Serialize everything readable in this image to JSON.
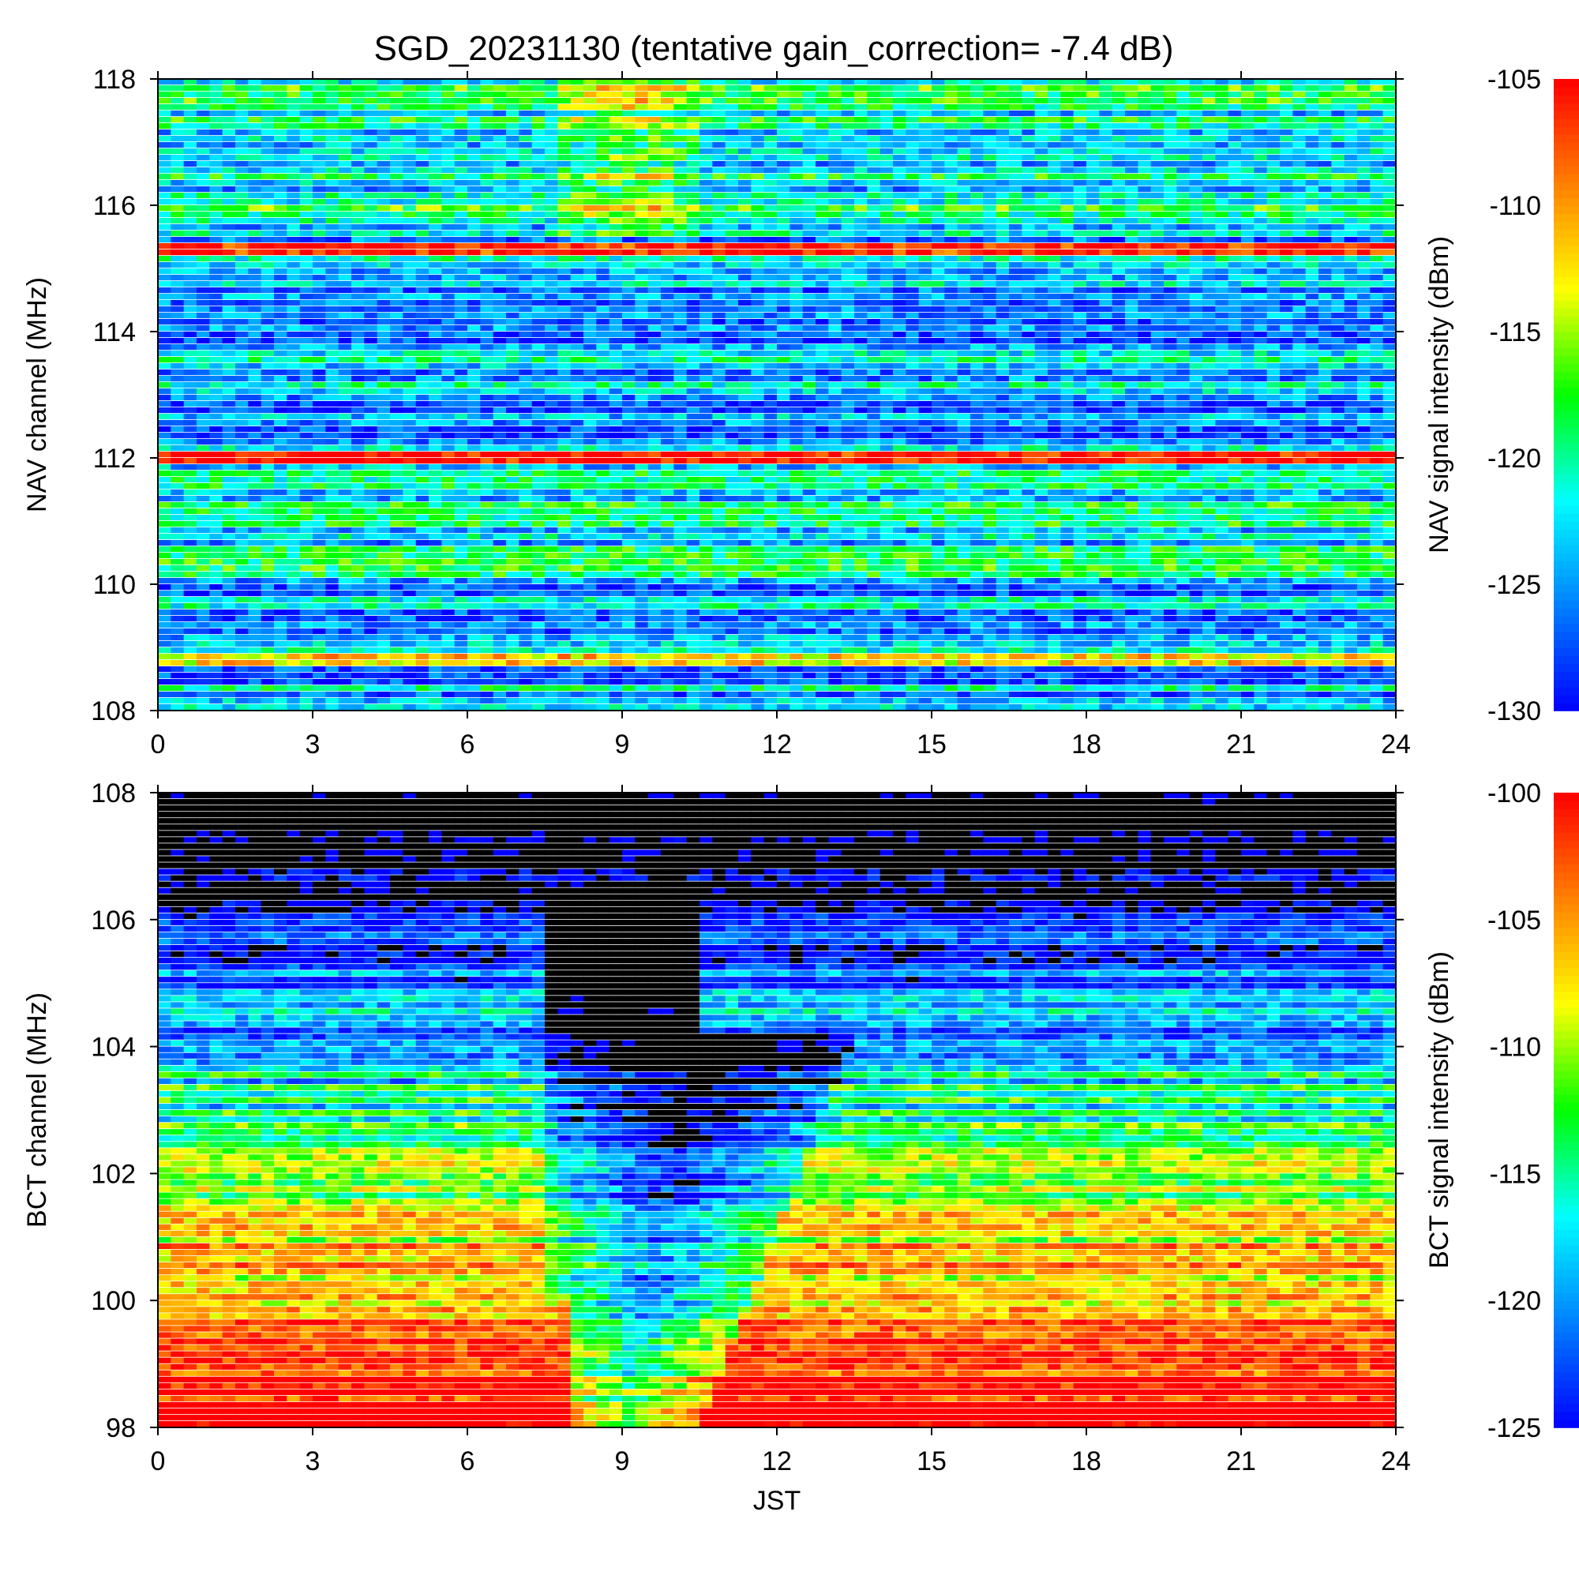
{
  "title": "SGD_20231130 (tentative gain_correction= -7.4 dB)",
  "chart_data": [
    {
      "type": "heatmap",
      "name": "nav-panel",
      "xlabel": "",
      "ylabel": "NAV channel (MHz)",
      "colorbar_label": "NAV signal intensity (dBm)",
      "x_range": [
        0,
        24
      ],
      "y_range": [
        108,
        118
      ],
      "x_ticks": [
        "0",
        "3",
        "6",
        "9",
        "12",
        "15",
        "18",
        "21",
        "24"
      ],
      "y_ticks": [
        "108",
        "110",
        "112",
        "114",
        "116",
        "118"
      ],
      "color_range": [
        -130,
        -105
      ],
      "colorbar_ticks": [
        "-130",
        "-125",
        "-120",
        "-115",
        "-110",
        "-105"
      ],
      "colormap": [
        "#0000ff",
        "#0080ff",
        "#00ffff",
        "#00ff00",
        "#ffff00",
        "#ff8000",
        "#ff0000"
      ],
      "strong_channels": [
        {
          "freq": 112.0,
          "level": -105
        },
        {
          "freq": 115.3,
          "level": -106
        },
        {
          "freq": 108.8,
          "level": -112
        }
      ],
      "enhanced_period_jst": [
        7.8,
        10.6
      ],
      "enhanced_band_mhz": [
        115.5,
        118
      ]
    },
    {
      "type": "heatmap",
      "name": "bct-panel",
      "xlabel": "JST",
      "ylabel": "BCT channel (MHz)",
      "colorbar_label": "BCT signal intensity (dBm)",
      "x_range": [
        0,
        24
      ],
      "y_range": [
        98,
        108
      ],
      "x_ticks": [
        "0",
        "3",
        "6",
        "9",
        "12",
        "15",
        "18",
        "21",
        "24"
      ],
      "y_ticks": [
        "98",
        "100",
        "102",
        "104",
        "106",
        "108"
      ],
      "color_range": [
        -125,
        -100
      ],
      "colorbar_ticks": [
        "-125",
        "-120",
        "-115",
        "-110",
        "-105",
        "-100"
      ],
      "colormap": [
        "#0000ff",
        "#0080ff",
        "#00ffff",
        "#00ff00",
        "#ffff00",
        "#ff8000",
        "#ff0000"
      ],
      "below_range_color": "#000000",
      "depletion_start_jst": 7.6,
      "depletion_end_jst_low_freq": 10.5,
      "depletion_end_jst_high_freq": 13.4
    }
  ]
}
